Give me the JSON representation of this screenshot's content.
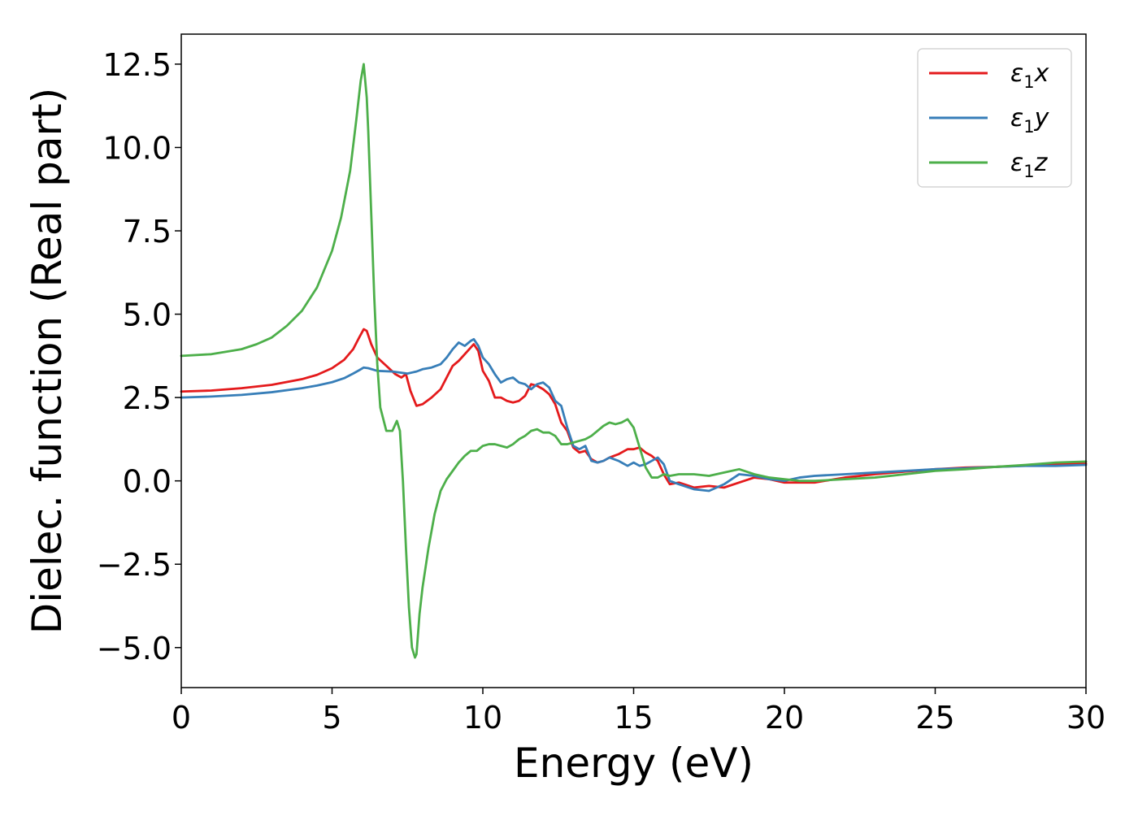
{
  "chart_data": {
    "type": "line",
    "title": "",
    "xlabel": "Energy (eV)",
    "ylabel": "Dielec. function (Real part)",
    "xlim": [
      0,
      30
    ],
    "ylim": [
      -6.2,
      13.4
    ],
    "xticks": [
      0,
      5,
      10,
      15,
      20,
      25,
      30
    ],
    "xtick_labels": [
      "0",
      "5",
      "10",
      "15",
      "20",
      "25",
      "30"
    ],
    "yticks": [
      -5.0,
      -2.5,
      0.0,
      2.5,
      5.0,
      7.5,
      10.0,
      12.5
    ],
    "ytick_labels": [
      "−5.0",
      "−2.5",
      "0.0",
      "2.5",
      "5.0",
      "7.5",
      "10.0",
      "12.5"
    ],
    "grid": false,
    "legend_position": "top-right",
    "series": [
      {
        "name": "ε₁x",
        "legend_base": "ε",
        "legend_sub": "1",
        "legend_tail": "x",
        "color": "#e41a1c",
        "x": [
          0,
          1,
          2,
          3,
          4,
          4.5,
          5,
          5.4,
          5.7,
          5.9,
          6.05,
          6.15,
          6.3,
          6.5,
          6.8,
          7.1,
          7.3,
          7.45,
          7.6,
          7.8,
          8.0,
          8.3,
          8.6,
          8.8,
          9.0,
          9.2,
          9.4,
          9.6,
          9.7,
          9.85,
          10.0,
          10.2,
          10.4,
          10.6,
          10.8,
          11.0,
          11.2,
          11.4,
          11.6,
          11.8,
          12.0,
          12.2,
          12.4,
          12.6,
          12.8,
          13.0,
          13.2,
          13.4,
          13.6,
          13.8,
          14.0,
          14.2,
          14.5,
          14.8,
          15.0,
          15.2,
          15.4,
          15.6,
          15.8,
          16.0,
          16.2,
          16.5,
          17.0,
          17.5,
          18.0,
          18.5,
          19.0,
          19.5,
          20.0,
          20.5,
          21.0,
          22.0,
          23.0,
          24.0,
          25.0,
          26.0,
          27.0,
          28.0,
          29.0,
          30.0
        ],
        "y": [
          2.68,
          2.71,
          2.78,
          2.88,
          3.05,
          3.18,
          3.38,
          3.63,
          3.95,
          4.3,
          4.55,
          4.5,
          4.1,
          3.7,
          3.45,
          3.2,
          3.1,
          3.2,
          2.7,
          2.25,
          2.3,
          2.5,
          2.75,
          3.1,
          3.45,
          3.6,
          3.8,
          4.0,
          4.1,
          3.9,
          3.3,
          3.0,
          2.5,
          2.5,
          2.4,
          2.35,
          2.4,
          2.55,
          2.9,
          2.85,
          2.75,
          2.6,
          2.3,
          1.75,
          1.5,
          1.0,
          0.85,
          0.9,
          0.65,
          0.55,
          0.6,
          0.7,
          0.8,
          0.95,
          0.95,
          1.0,
          0.85,
          0.75,
          0.6,
          0.2,
          -0.1,
          -0.05,
          -0.2,
          -0.15,
          -0.2,
          -0.05,
          0.1,
          0.05,
          -0.05,
          -0.05,
          -0.05,
          0.1,
          0.2,
          0.28,
          0.35,
          0.4,
          0.42,
          0.46,
          0.5,
          0.52
        ]
      },
      {
        "name": "ε₁y",
        "legend_base": "ε",
        "legend_sub": "1",
        "legend_tail": "y",
        "color": "#377eb8",
        "x": [
          0,
          1,
          2,
          3,
          4,
          4.5,
          5,
          5.4,
          5.7,
          5.9,
          6.05,
          6.2,
          6.5,
          7.0,
          7.5,
          7.8,
          8.0,
          8.3,
          8.6,
          8.8,
          9.0,
          9.2,
          9.4,
          9.6,
          9.7,
          9.85,
          10.0,
          10.2,
          10.4,
          10.6,
          10.8,
          11.0,
          11.2,
          11.4,
          11.6,
          11.8,
          12.0,
          12.2,
          12.4,
          12.6,
          12.8,
          13.0,
          13.2,
          13.4,
          13.6,
          13.8,
          14.0,
          14.2,
          14.5,
          14.8,
          15.0,
          15.2,
          15.4,
          15.6,
          15.8,
          16.0,
          16.2,
          16.5,
          17.0,
          17.5,
          18.0,
          18.5,
          19.0,
          19.5,
          20.0,
          20.5,
          21.0,
          22.0,
          23.0,
          24.0,
          25.0,
          26.0,
          27.0,
          28.0,
          29.0,
          30.0
        ],
        "y": [
          2.5,
          2.53,
          2.58,
          2.66,
          2.78,
          2.86,
          2.96,
          3.08,
          3.22,
          3.32,
          3.4,
          3.38,
          3.3,
          3.28,
          3.22,
          3.28,
          3.35,
          3.4,
          3.5,
          3.7,
          3.95,
          4.15,
          4.05,
          4.2,
          4.25,
          4.05,
          3.7,
          3.5,
          3.2,
          2.95,
          3.05,
          3.1,
          2.95,
          2.9,
          2.75,
          2.9,
          2.95,
          2.8,
          2.4,
          2.25,
          1.6,
          1.05,
          0.95,
          1.05,
          0.6,
          0.55,
          0.6,
          0.7,
          0.6,
          0.45,
          0.55,
          0.45,
          0.5,
          0.6,
          0.7,
          0.5,
          0.0,
          -0.1,
          -0.25,
          -0.3,
          -0.1,
          0.2,
          0.15,
          0.05,
          0.0,
          0.1,
          0.15,
          0.2,
          0.25,
          0.3,
          0.35,
          0.38,
          0.42,
          0.45,
          0.45,
          0.48
        ]
      },
      {
        "name": "ε₁z",
        "legend_base": "ε",
        "legend_sub": "1",
        "legend_tail": "z",
        "color": "#4daf4a",
        "x": [
          0,
          1,
          2,
          2.5,
          3,
          3.5,
          4,
          4.5,
          5,
          5.3,
          5.6,
          5.8,
          5.95,
          6.05,
          6.15,
          6.2,
          6.3,
          6.4,
          6.5,
          6.6,
          6.8,
          7.0,
          7.15,
          7.25,
          7.35,
          7.45,
          7.55,
          7.65,
          7.75,
          7.8,
          7.9,
          8.0,
          8.2,
          8.4,
          8.6,
          8.8,
          9.0,
          9.2,
          9.4,
          9.6,
          9.8,
          10.0,
          10.2,
          10.4,
          10.6,
          10.8,
          11.0,
          11.2,
          11.4,
          11.6,
          11.8,
          12.0,
          12.2,
          12.4,
          12.6,
          12.8,
          13.0,
          13.2,
          13.4,
          13.6,
          13.8,
          14.0,
          14.2,
          14.4,
          14.6,
          14.8,
          15.0,
          15.2,
          15.4,
          15.6,
          15.8,
          16.0,
          16.2,
          16.5,
          17.0,
          17.5,
          18.0,
          18.5,
          19.0,
          19.5,
          20.0,
          20.5,
          21.0,
          22.0,
          23.0,
          24.0,
          25.0,
          26.0,
          27.0,
          28.0,
          29.0,
          30.0
        ],
        "y": [
          3.75,
          3.8,
          3.95,
          4.1,
          4.3,
          4.65,
          5.1,
          5.8,
          6.9,
          7.9,
          9.3,
          10.8,
          12.0,
          12.5,
          11.5,
          10.5,
          8.0,
          5.5,
          3.5,
          2.2,
          1.5,
          1.5,
          1.8,
          1.5,
          0.0,
          -2.0,
          -3.8,
          -5.0,
          -5.3,
          -5.2,
          -4.0,
          -3.2,
          -2.0,
          -1.0,
          -0.3,
          0.05,
          0.3,
          0.55,
          0.75,
          0.9,
          0.9,
          1.05,
          1.1,
          1.1,
          1.05,
          1.0,
          1.1,
          1.25,
          1.35,
          1.5,
          1.55,
          1.45,
          1.45,
          1.35,
          1.1,
          1.1,
          1.15,
          1.2,
          1.25,
          1.35,
          1.5,
          1.65,
          1.75,
          1.7,
          1.75,
          1.85,
          1.6,
          1.0,
          0.4,
          0.1,
          0.1,
          0.2,
          0.15,
          0.2,
          0.2,
          0.15,
          0.25,
          0.35,
          0.2,
          0.1,
          0.05,
          0.0,
          0.0,
          0.05,
          0.1,
          0.2,
          0.3,
          0.35,
          0.42,
          0.48,
          0.55,
          0.58
        ]
      }
    ]
  }
}
